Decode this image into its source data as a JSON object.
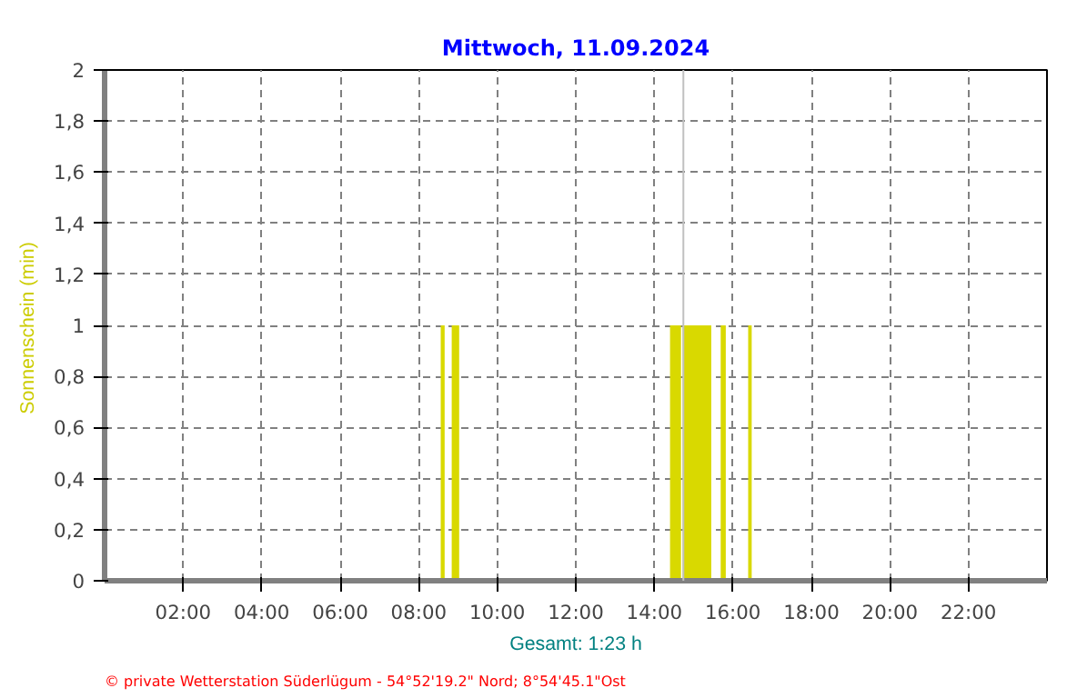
{
  "chart_data": {
    "type": "histogram",
    "title": "Mittwoch, 11.09.2024",
    "xlabel": "Gesamt: 1:23 h",
    "ylabel": "Sonnenschein  (min)",
    "bins": [
      8.56,
      8.66,
      8.84,
      9.03,
      14.4,
      14.68,
      14.72,
      15.45,
      15.69,
      15.82,
      16.39,
      16.48
    ],
    "values": [
      1,
      0,
      1,
      0,
      1,
      0,
      1,
      0,
      1,
      0,
      1
    ],
    "color": "#d9d900",
    "xlim": [
      0,
      24
    ],
    "ylim": [
      0,
      2
    ],
    "xticks": [
      {
        "value": 2,
        "label": "02:00"
      },
      {
        "value": 4,
        "label": "04:00"
      },
      {
        "value": 6,
        "label": "06:00"
      },
      {
        "value": 8,
        "label": "08:00"
      },
      {
        "value": 10,
        "label": "10:00"
      },
      {
        "value": 12,
        "label": "12:00"
      },
      {
        "value": 14,
        "label": "14:00"
      },
      {
        "value": 16,
        "label": "16:00"
      },
      {
        "value": 18,
        "label": "18:00"
      },
      {
        "value": 20,
        "label": "20:00"
      },
      {
        "value": 22,
        "label": "22:00"
      }
    ],
    "yticks": [
      0,
      {
        "value": 0.2,
        "label": "0,2"
      },
      {
        "value": 0.4,
        "label": "0,4"
      },
      {
        "value": 0.6,
        "label": "0,6"
      },
      {
        "value": 0.8,
        "label": "0,8"
      },
      1,
      {
        "value": 1.2,
        "label": "1,2"
      },
      {
        "value": 1.4,
        "label": "1,4"
      },
      {
        "value": 1.6,
        "label": "1,6"
      },
      {
        "value": 1.8,
        "label": "1,8"
      },
      2
    ],
    "ref_lines": [
      {
        "axis": "x",
        "value": 14.74,
        "label": null,
        "color": "#c0c0c0"
      }
    ],
    "grid": true,
    "annotations": [
      "© private Wetterstation Süderlügum  -  54°52'19.2\" Nord; 8°54'45.1\"Ost"
    ]
  }
}
